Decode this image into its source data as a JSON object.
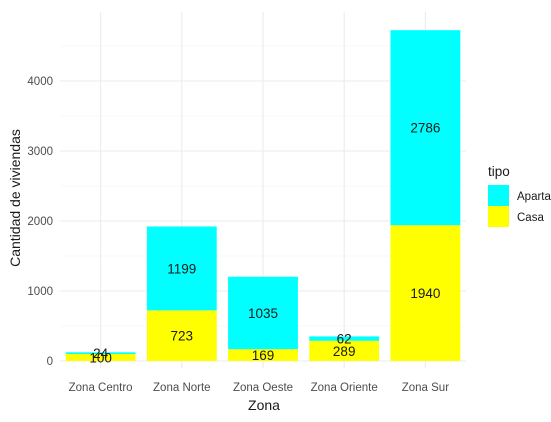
{
  "chart_data": {
    "type": "bar",
    "stacked": true,
    "xlabel": "Zona",
    "ylabel": "Cantidad de viviendas",
    "ylim": [
      0,
      4900
    ],
    "yticks": [
      0,
      1000,
      2000,
      3000,
      4000
    ],
    "ytick_labels": [
      "0",
      "1000",
      "2000",
      "3000",
      "4000"
    ],
    "grid": true,
    "categories": [
      "Zona Centro",
      "Zona Norte",
      "Zona Oeste",
      "Zona Oriente",
      "Zona Sur"
    ],
    "series": [
      {
        "name": "Casa",
        "color": "#FFFF00",
        "values": [
          100,
          723,
          169,
          289,
          1940
        ]
      },
      {
        "name": "Apartamento",
        "color": "#00FFFF",
        "values": [
          24,
          1199,
          1035,
          62,
          2786
        ]
      }
    ],
    "legend": {
      "title": "tipo",
      "position": "right",
      "entries": [
        "Apartamento",
        "Casa"
      ]
    }
  }
}
